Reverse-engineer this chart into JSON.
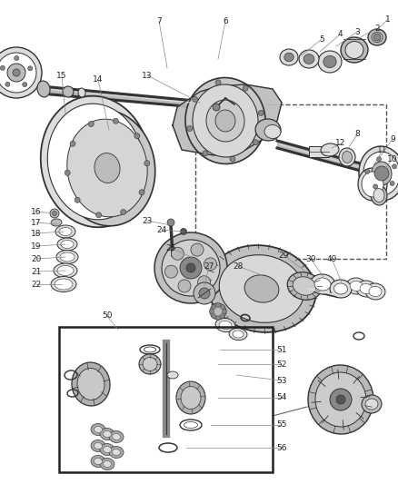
{
  "bg_color": "#ffffff",
  "figsize": [
    4.38,
    5.33
  ],
  "dpi": 100,
  "line_color": "#333333",
  "text_color": "#222222",
  "gray_dark": "#555555",
  "gray_mid": "#888888",
  "gray_light": "#bbbbbb",
  "gray_very_light": "#dddddd",
  "white": "#ffffff",
  "label_fs": 6.5,
  "axle_tube_color": "#666666",
  "housing_face": "#aaaaaa",
  "housing_edge": "#444444"
}
